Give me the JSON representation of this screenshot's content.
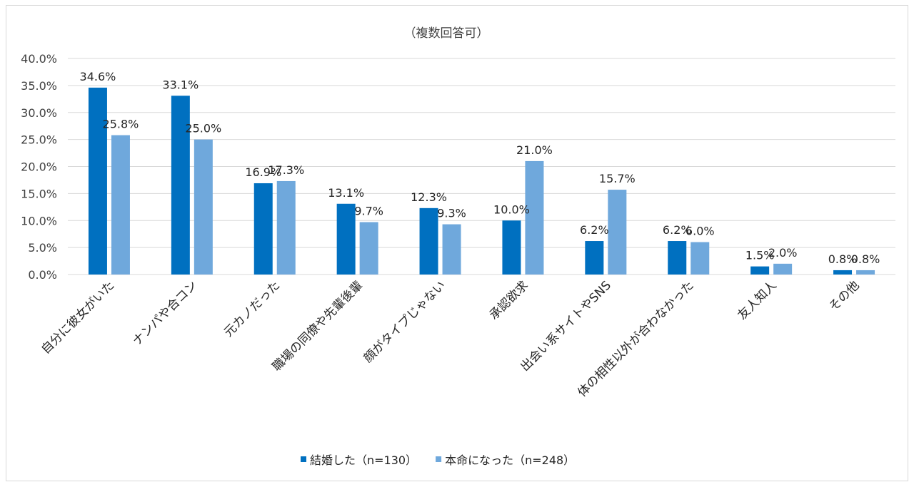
{
  "chart_data": {
    "type": "bar",
    "title": "（複数回答可）",
    "categories": [
      "自分に彼女がいた",
      "ナンパや合コン",
      "元カノだった",
      "職場の同僚や先輩後輩",
      "顔がタイプじゃない",
      "承認欲求",
      "出会い系サイトやSNS",
      "体の相性以外が合わなかった",
      "友人知人",
      "その他"
    ],
    "series": [
      {
        "name": "結婚した（n=130）",
        "color": "#0070c0",
        "values": [
          34.6,
          33.1,
          16.9,
          13.1,
          12.3,
          10.0,
          6.2,
          6.2,
          1.5,
          0.8
        ],
        "labels": [
          "34.6%",
          "33.1%",
          "16.9%",
          "13.1%",
          "12.3%",
          "10.0%",
          "6.2%",
          "6.2%",
          "1.5%",
          "0.8%"
        ]
      },
      {
        "name": "本命になった（n=248）",
        "color": "#6fa8dc",
        "values": [
          25.8,
          25.0,
          17.3,
          9.7,
          9.3,
          21.0,
          15.7,
          6.0,
          2.0,
          0.8
        ],
        "labels": [
          "25.8%",
          "25.0%",
          "17.3%",
          "9.7%",
          "9.3%",
          "21.0%",
          "15.7%",
          "6.0%",
          "2.0%",
          "0.8%"
        ]
      }
    ],
    "yticks": [
      "0.0%",
      "5.0%",
      "10.0%",
      "15.0%",
      "20.0%",
      "25.0%",
      "30.0%",
      "35.0%",
      "40.0%"
    ],
    "ylim": [
      0,
      40
    ],
    "grid": true,
    "legend": "bottom"
  }
}
